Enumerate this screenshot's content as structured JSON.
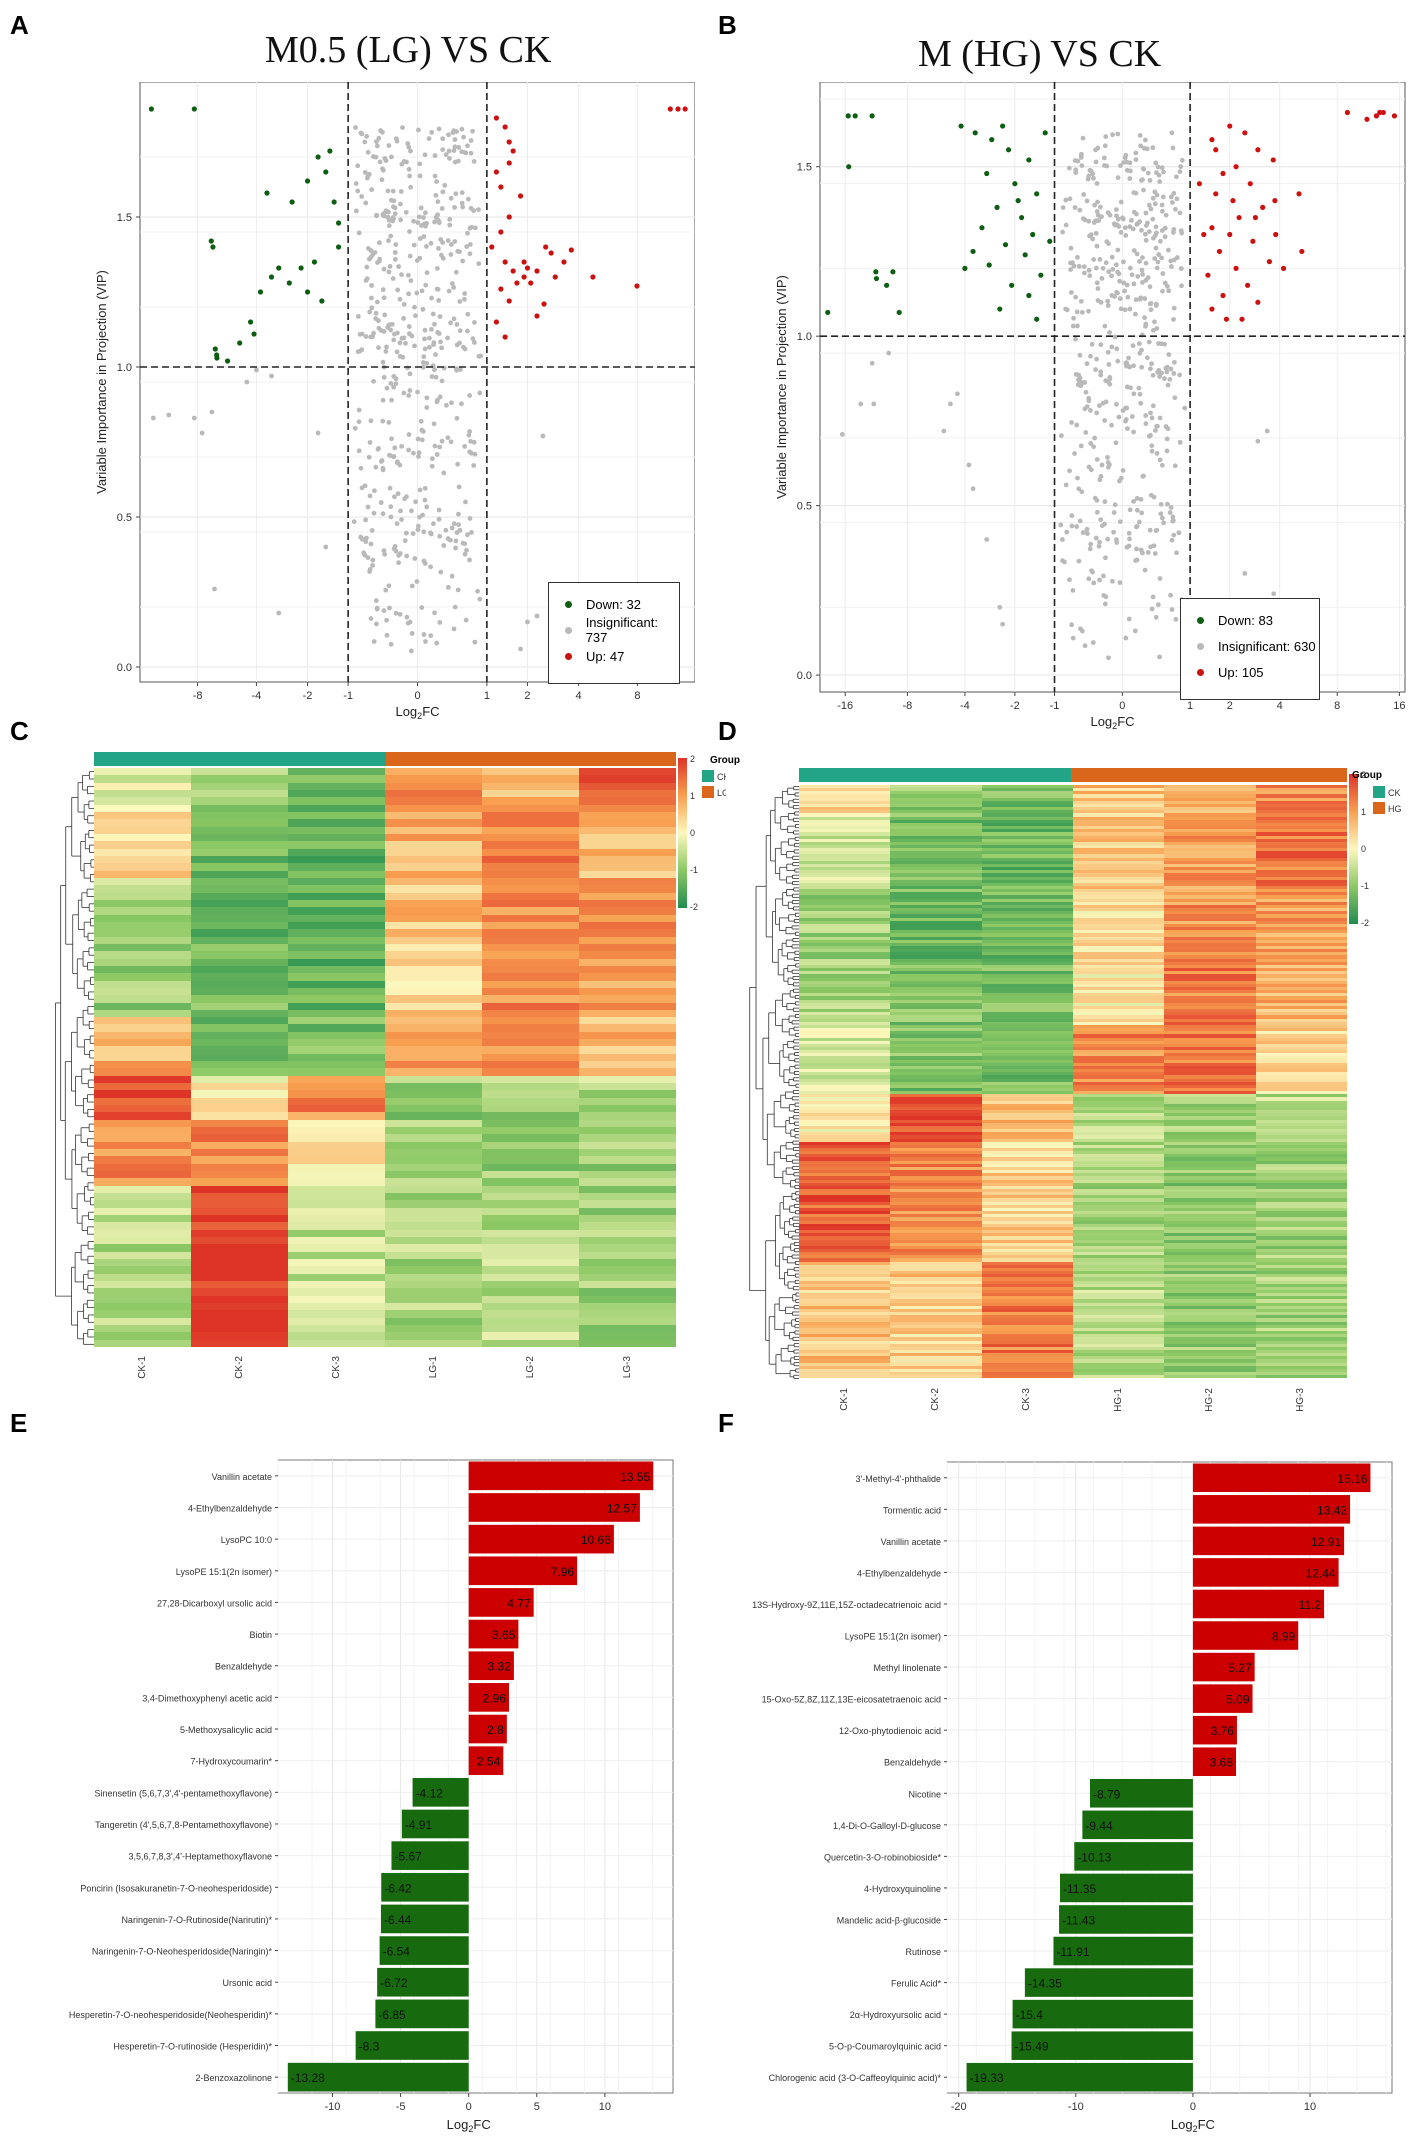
{
  "panels": {
    "A": "A",
    "B": "B",
    "C": "C",
    "D": "D",
    "E": "E",
    "F": "F"
  },
  "colors": {
    "up": "#cc1111",
    "down": "#0d5e12",
    "insig": "#b9b9b9",
    "ck": "#22a587",
    "treat": "#d9661a",
    "bar_up": "#cc0000",
    "bar_down": "#176b0e"
  },
  "chart_data": [
    {
      "id": "A",
      "type": "scatter",
      "title": "M0.5 (LG) VS CK",
      "xlabel": "Log2FC",
      "ylabel": "Variable Importance in Projection (VIP)",
      "xlim": [
        -15,
        15
      ],
      "ylim": [
        -0.05,
        1.95
      ],
      "xticks": [
        "-8",
        "-4",
        "-2",
        "-1",
        "0",
        "1",
        "2",
        "4",
        "8"
      ],
      "yticks": [
        "0.0",
        "0.5",
        "1.0",
        "1.5"
      ],
      "thresholds": {
        "x": [
          -1,
          1
        ],
        "y": 1.0
      },
      "legend": [
        {
          "label": "Down: 32",
          "cls": "down"
        },
        {
          "label": "Insignificant: 737",
          "cls": "insig"
        },
        {
          "label": "Up: 47",
          "cls": "up"
        }
      ],
      "up_points": [
        [
          11.5,
          1.86
        ],
        [
          12.5,
          1.86
        ],
        [
          13.5,
          1.86
        ],
        [
          7.96,
          1.27
        ],
        [
          4.77,
          1.3
        ],
        [
          3.65,
          1.39
        ],
        [
          3.32,
          1.35
        ],
        [
          2.96,
          1.3
        ],
        [
          2.8,
          1.38
        ],
        [
          2.54,
          1.21
        ],
        [
          2.3,
          1.17
        ],
        [
          1.6,
          1.72
        ],
        [
          1.5,
          1.75
        ],
        [
          1.4,
          1.8
        ],
        [
          1.8,
          1.57
        ],
        [
          1.5,
          1.5
        ],
        [
          1.3,
          1.45
        ],
        [
          1.4,
          1.35
        ],
        [
          1.6,
          1.32
        ],
        [
          1.9,
          1.3
        ],
        [
          2.1,
          1.28
        ],
        [
          1.3,
          1.26
        ],
        [
          1.5,
          1.22
        ],
        [
          1.7,
          1.28
        ],
        [
          2.0,
          1.33
        ],
        [
          1.2,
          1.65
        ],
        [
          1.3,
          1.6
        ],
        [
          1.2,
          1.83
        ],
        [
          1.5,
          1.68
        ],
        [
          1.9,
          1.35
        ],
        [
          2.3,
          1.32
        ],
        [
          2.6,
          1.4
        ],
        [
          1.2,
          1.15
        ],
        [
          1.4,
          1.1
        ],
        [
          1.1,
          1.4
        ]
      ],
      "down_points": [
        [
          -13.28,
          1.86
        ],
        [
          -8.3,
          1.86
        ],
        [
          -6.85,
          1.42
        ],
        [
          -6.72,
          1.4
        ],
        [
          -6.54,
          1.06
        ],
        [
          -6.44,
          1.04
        ],
        [
          -6.42,
          1.03
        ],
        [
          -5.67,
          1.02
        ],
        [
          -4.91,
          1.08
        ],
        [
          -4.12,
          1.11
        ],
        [
          -3.3,
          1.3
        ],
        [
          -3.8,
          1.25
        ],
        [
          -3.0,
          1.33
        ],
        [
          -2.6,
          1.28
        ],
        [
          -2.2,
          1.33
        ],
        [
          -2.0,
          1.25
        ],
        [
          -1.8,
          1.35
        ],
        [
          -1.6,
          1.22
        ],
        [
          -3.5,
          1.58
        ],
        [
          -2.5,
          1.55
        ],
        [
          -2.0,
          1.62
        ],
        [
          -1.7,
          1.7
        ],
        [
          -1.4,
          1.72
        ],
        [
          -1.3,
          1.55
        ],
        [
          -1.2,
          1.48
        ],
        [
          -4.3,
          1.15
        ],
        [
          -1.5,
          1.65
        ],
        [
          -1.2,
          1.4
        ]
      ],
      "insig_points": [
        [
          -13,
          0.83
        ],
        [
          -11,
          0.84
        ],
        [
          -8.3,
          0.83
        ],
        [
          -7.6,
          0.78
        ],
        [
          -6.8,
          0.85
        ],
        [
          -6.6,
          0.26
        ],
        [
          -3,
          0.18
        ],
        [
          -4,
          0.99
        ],
        [
          -4.5,
          0.95
        ],
        [
          -3.3,
          0.97
        ],
        [
          2.5,
          0.77
        ],
        [
          2,
          0.15
        ],
        [
          2.3,
          0.17
        ],
        [
          -1.7,
          0.78
        ],
        [
          -1.5,
          0.4
        ],
        [
          1.8,
          0.06
        ]
      ]
    },
    {
      "id": "B",
      "type": "scatter",
      "title": "M (HG) VS CK",
      "xlabel": "Log2FC",
      "ylabel": "Variable Importance in Projection (VIP)",
      "xlim": [
        -21,
        17
      ],
      "ylim": [
        -0.05,
        1.75
      ],
      "xticks": [
        "-16",
        "-8",
        "-4",
        "-2",
        "-1",
        "0",
        "1",
        "2",
        "4",
        "8",
        "16"
      ],
      "yticks": [
        "0.0",
        "0.5",
        "1.0",
        "1.5"
      ],
      "thresholds": {
        "x": [
          -1,
          1
        ],
        "y": 1.0
      },
      "legend": [
        {
          "label": "Down: 83",
          "cls": "down"
        },
        {
          "label": "Insignificant: 630",
          "cls": "insig"
        },
        {
          "label": "Up: 105",
          "cls": "up"
        }
      ],
      "up_points": [
        [
          15.16,
          1.65
        ],
        [
          13.42,
          1.66
        ],
        [
          12.91,
          1.66
        ],
        [
          12.44,
          1.65
        ],
        [
          11.2,
          1.64
        ],
        [
          8.99,
          1.66
        ],
        [
          5.27,
          1.25
        ],
        [
          5.09,
          1.42
        ],
        [
          3.76,
          1.4
        ],
        [
          3.68,
          1.52
        ],
        [
          2.0,
          1.62
        ],
        [
          2.5,
          1.6
        ],
        [
          1.5,
          1.58
        ],
        [
          3.0,
          1.55
        ],
        [
          2.2,
          1.5
        ],
        [
          1.8,
          1.48
        ],
        [
          2.7,
          1.45
        ],
        [
          1.6,
          1.42
        ],
        [
          3.2,
          1.38
        ],
        [
          2.3,
          1.35
        ],
        [
          1.5,
          1.32
        ],
        [
          2.0,
          1.3
        ],
        [
          2.8,
          1.28
        ],
        [
          1.7,
          1.25
        ],
        [
          3.5,
          1.22
        ],
        [
          2.2,
          1.2
        ],
        [
          1.4,
          1.18
        ],
        [
          2.6,
          1.15
        ],
        [
          1.8,
          1.12
        ],
        [
          3.0,
          1.1
        ],
        [
          1.5,
          1.08
        ],
        [
          2.4,
          1.05
        ],
        [
          1.3,
          1.3
        ],
        [
          1.2,
          1.45
        ],
        [
          2.9,
          1.35
        ],
        [
          3.8,
          1.3
        ],
        [
          4.2,
          1.2
        ],
        [
          1.6,
          1.55
        ],
        [
          2.1,
          1.4
        ],
        [
          1.9,
          1.05
        ]
      ],
      "down_points": [
        [
          -19.33,
          1.07
        ],
        [
          -15.49,
          1.65
        ],
        [
          -15.4,
          1.5
        ],
        [
          -14.35,
          1.65
        ],
        [
          -11.91,
          1.65
        ],
        [
          -11.43,
          1.19
        ],
        [
          -11.35,
          1.17
        ],
        [
          -10.13,
          1.15
        ],
        [
          -9.44,
          1.19
        ],
        [
          -8.79,
          1.07
        ],
        [
          -4.2,
          1.62
        ],
        [
          -3.5,
          1.6
        ],
        [
          -2.8,
          1.58
        ],
        [
          -2.2,
          1.55
        ],
        [
          -1.6,
          1.52
        ],
        [
          -3.0,
          1.48
        ],
        [
          -2.0,
          1.45
        ],
        [
          -1.4,
          1.42
        ],
        [
          -2.6,
          1.38
        ],
        [
          -1.8,
          1.35
        ],
        [
          -3.2,
          1.32
        ],
        [
          -1.5,
          1.3
        ],
        [
          -2.3,
          1.27
        ],
        [
          -1.7,
          1.24
        ],
        [
          -2.9,
          1.21
        ],
        [
          -1.3,
          1.18
        ],
        [
          -2.1,
          1.15
        ],
        [
          -1.6,
          1.12
        ],
        [
          -2.5,
          1.08
        ],
        [
          -1.4,
          1.05
        ],
        [
          -1.9,
          1.4
        ],
        [
          -3.6,
          1.25
        ],
        [
          -4.0,
          1.2
        ],
        [
          -1.2,
          1.6
        ],
        [
          -2.4,
          1.62
        ],
        [
          -1.1,
          1.28
        ]
      ],
      "insig_points": [
        [
          -16.5,
          0.71
        ],
        [
          -13.5,
          0.8
        ],
        [
          -11.7,
          0.8
        ],
        [
          -11.9,
          0.92
        ],
        [
          -9.9,
          0.95
        ],
        [
          -5.2,
          0.72
        ],
        [
          -4.8,
          0.8
        ],
        [
          -4.4,
          0.83
        ],
        [
          -3.6,
          0.55
        ],
        [
          -3.8,
          0.62
        ],
        [
          -3.0,
          0.4
        ],
        [
          3.0,
          0.69
        ],
        [
          3.4,
          0.72
        ],
        [
          3.7,
          0.24
        ],
        [
          2.5,
          0.3
        ],
        [
          -2.5,
          0.2
        ],
        [
          -2.4,
          0.15
        ]
      ]
    },
    {
      "id": "C",
      "type": "heatmap",
      "title": "",
      "columns": [
        "CK-1",
        "CK-2",
        "CK-3",
        "LG-1",
        "LG-2",
        "LG-3"
      ],
      "groups": [
        {
          "name": "CK",
          "color": "#22a587"
        },
        {
          "name": "LG",
          "color": "#d9661a"
        }
      ],
      "legend_title": "Group",
      "scale_ticks": [
        "2",
        "1",
        "0",
        "-1",
        "-2"
      ],
      "rows": 79
    },
    {
      "id": "D",
      "type": "heatmap",
      "title": "",
      "columns": [
        "CK-1",
        "CK-2",
        "CK-3",
        "HG-1",
        "HG-2",
        "HG-3"
      ],
      "groups": [
        {
          "name": "CK",
          "color": "#22a587"
        },
        {
          "name": "HG",
          "color": "#d9661a"
        }
      ],
      "legend_title": "Group",
      "scale_ticks": [
        "2",
        "1",
        "0",
        "-1",
        "-2"
      ],
      "rows": 188
    },
    {
      "id": "E",
      "type": "bar",
      "orientation": "horizontal",
      "xlabel": "Log2FC",
      "xlim": [
        -14,
        15
      ],
      "xticks": [
        -10,
        -5,
        0,
        5,
        10
      ],
      "categories": [
        "Vanillin acetate",
        "4-Ethylbenzaldehyde",
        "LysoPC 10:0",
        "LysoPE 15:1(2n isomer)",
        "27,28-Dicarboxyl ursolic acid",
        "Biotin",
        "Benzaldehyde",
        "3,4-Dimethoxyphenyl acetic acid",
        "5-Methoxysalicylic acid",
        "7-Hydroxycoumarin*",
        "Sinensetin (5,6,7,3',4'-pentamethoxyflavone)",
        "Tangeretin (4',5,6,7,8-Pentamethoxyflavone)",
        "3,5,6,7,8,3',4'-Heptamethoxyflavone",
        "Poncirin (Isosakuranetin-7-O-neohesperidoside)",
        "Naringenin-7-O-Rutinoside(Narirutin)*",
        "Naringenin-7-O-Neohesperidoside(Naringin)*",
        "Ursonic acid",
        "Hesperetin-7-O-neohesperidoside(Neohesperidin)*",
        "Hesperetin-7-O-rutinoside (Hesperidin)*",
        "2-Benzoxazolinone"
      ],
      "values": [
        13.55,
        12.57,
        10.66,
        7.96,
        4.77,
        3.65,
        3.32,
        2.96,
        2.8,
        2.54,
        -4.12,
        -4.91,
        -5.67,
        -6.42,
        -6.44,
        -6.54,
        -6.72,
        -6.85,
        -8.3,
        -13.28
      ],
      "labels": [
        "13.55",
        "12.57",
        "10.66",
        "7.96",
        "4.77",
        "3.65",
        "3.32",
        "2.96",
        "2.8",
        "2.54",
        "-4.12",
        "-4.91",
        "-5.67",
        "-6.42",
        "-6.44",
        "-6.54",
        "-6.72",
        "-6.85",
        "-8.3",
        "-13.28"
      ]
    },
    {
      "id": "F",
      "type": "bar",
      "orientation": "horizontal",
      "xlabel": "Log2FC",
      "xlim": [
        -21,
        17
      ],
      "xticks": [
        -20,
        -10,
        0,
        10
      ],
      "categories": [
        "3'-Methyl-4'-phthalide",
        "Tormentic acid",
        "Vanillin acetate",
        "4-Ethylbenzaldehyde",
        "13S-Hydroxy-9Z,11E,15Z-octadecatrienoic acid",
        "LysoPE 15:1(2n isomer)",
        "Methyl linolenate",
        "15-Oxo-5Z,8Z,11Z,13E-eicosatetraenoic acid",
        "12-Oxo-phytodienoic acid",
        "Benzaldehyde",
        "Nicotine",
        "1,4-Di-O-Galloyl-D-glucose",
        "Quercetin-3-O-robinobioside*",
        "4-Hydroxyquinoline",
        "Mandelic acid-β-glucoside",
        "Rutinose",
        "Ferulic Acid*",
        "2α-Hydroxyursolic acid",
        "5-O-p-Coumaroylquinic acid",
        "Chlorogenic acid (3-O-Caffeoylquinic acid)*"
      ],
      "values": [
        15.16,
        13.42,
        12.91,
        12.44,
        11.2,
        8.99,
        5.27,
        5.09,
        3.76,
        3.68,
        -8.79,
        -9.44,
        -10.13,
        -11.35,
        -11.43,
        -11.91,
        -14.35,
        -15.4,
        -15.49,
        -19.33
      ],
      "labels": [
        "15.16",
        "13.42",
        "12.91",
        "12.44",
        "11.2",
        "8.99",
        "5.27",
        "5.09",
        "3.76",
        "3.68",
        "-8.79",
        "-9.44",
        "-10.13",
        "-11.35",
        "-11.43",
        "-11.91",
        "-14.35",
        "-15.4",
        "-15.49",
        "-19.33"
      ]
    }
  ]
}
